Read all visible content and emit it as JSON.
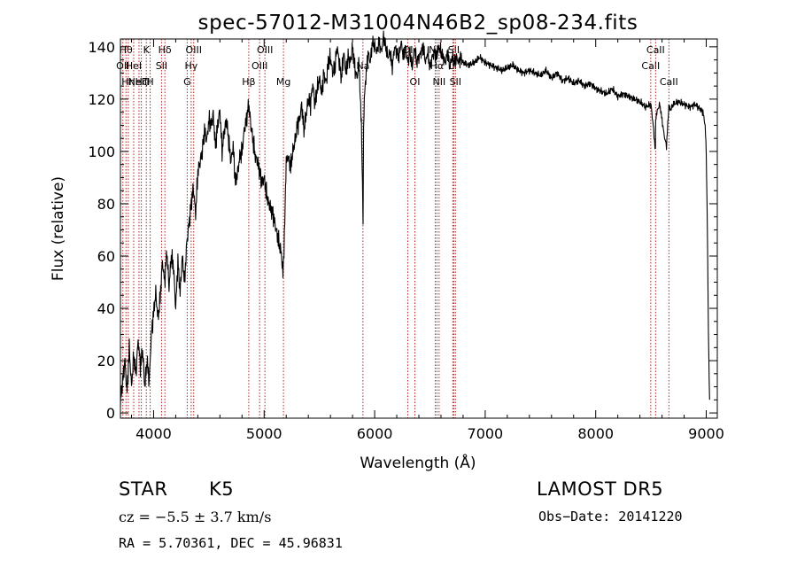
{
  "chart_data": {
    "type": "line",
    "title": "spec-57012-M31004N46B2_sp08-234.fits",
    "xlabel": "Wavelength (Å)",
    "ylabel": "Flux (relative)",
    "xlim": [
      3700,
      9100
    ],
    "ylim": [
      -2,
      143
    ],
    "x_ticks": [
      4000,
      5000,
      6000,
      7000,
      8000,
      9000
    ],
    "y_ticks": [
      0,
      20,
      40,
      60,
      80,
      100,
      120,
      140
    ],
    "grid": false,
    "series": [
      {
        "color": "#000000",
        "x": [
          3700,
          3720,
          3740,
          3760,
          3780,
          3800,
          3820,
          3840,
          3860,
          3880,
          3900,
          3920,
          3940,
          3960,
          3980,
          4000,
          4020,
          4040,
          4060,
          4080,
          4100,
          4120,
          4140,
          4160,
          4180,
          4200,
          4220,
          4240,
          4260,
          4280,
          4300,
          4320,
          4340,
          4360,
          4380,
          4400,
          4420,
          4440,
          4460,
          4480,
          4500,
          4520,
          4540,
          4560,
          4580,
          4600,
          4620,
          4640,
          4660,
          4680,
          4700,
          4720,
          4740,
          4760,
          4780,
          4800,
          4820,
          4840,
          4860,
          4880,
          4900,
          4920,
          4940,
          4960,
          4980,
          5000,
          5020,
          5040,
          5060,
          5080,
          5100,
          5120,
          5140,
          5160,
          5170,
          5180,
          5190,
          5200,
          5220,
          5240,
          5260,
          5280,
          5300,
          5320,
          5340,
          5360,
          5380,
          5400,
          5420,
          5440,
          5460,
          5480,
          5500,
          5520,
          5540,
          5560,
          5580,
          5600,
          5620,
          5640,
          5660,
          5680,
          5700,
          5720,
          5740,
          5760,
          5780,
          5800,
          5820,
          5840,
          5860,
          5870,
          5880,
          5890,
          5895,
          5900,
          5910,
          5920,
          5940,
          5960,
          5980,
          6000,
          6020,
          6040,
          6060,
          6080,
          6100,
          6120,
          6140,
          6160,
          6180,
          6200,
          6220,
          6240,
          6260,
          6280,
          6300,
          6320,
          6340,
          6360,
          6380,
          6400,
          6420,
          6440,
          6460,
          6480,
          6500,
          6520,
          6540,
          6560,
          6580,
          6600,
          6620,
          6640,
          6660,
          6680,
          6700,
          6720,
          6740,
          6760,
          6780,
          6800,
          6850,
          6900,
          6950,
          7000,
          7050,
          7100,
          7150,
          7200,
          7250,
          7300,
          7350,
          7400,
          7450,
          7500,
          7550,
          7600,
          7650,
          7700,
          7750,
          7800,
          7850,
          7900,
          7950,
          8000,
          8050,
          8100,
          8150,
          8200,
          8250,
          8300,
          8350,
          8400,
          8450,
          8500,
          8520,
          8540,
          8542,
          8560,
          8580,
          8600,
          8620,
          8640,
          8660,
          8662,
          8680,
          8700,
          8750,
          8800,
          8850,
          8900,
          8950,
          8970,
          8990,
          9000,
          9010,
          9020,
          9030
        ],
        "y": [
          5,
          12,
          20,
          8,
          25,
          10,
          22,
          15,
          28,
          18,
          24,
          10,
          20,
          12,
          30,
          38,
          46,
          36,
          44,
          58,
          50,
          62,
          48,
          60,
          56,
          40,
          58,
          46,
          60,
          50,
          65,
          72,
          80,
          86,
          76,
          92,
          96,
          100,
          108,
          104,
          112,
          110,
          114,
          102,
          110,
          116,
          100,
          108,
          112,
          104,
          96,
          102,
          88,
          92,
          98,
          100,
          108,
          112,
          118,
          110,
          104,
          98,
          96,
          92,
          88,
          90,
          84,
          80,
          78,
          76,
          72,
          68,
          64,
          60,
          55,
          62,
          80,
          96,
          98,
          94,
          100,
          104,
          110,
          112,
          118,
          108,
          114,
          120,
          118,
          126,
          118,
          124,
          128,
          122,
          130,
          126,
          134,
          136,
          130,
          132,
          140,
          134,
          128,
          138,
          130,
          136,
          134,
          140,
          132,
          128,
          134,
          122,
          112,
          88,
          72,
          110,
          124,
          128,
          138,
          134,
          142,
          140,
          138,
          142,
          138,
          144,
          140,
          136,
          138,
          132,
          140,
          138,
          136,
          142,
          136,
          140,
          134,
          138,
          132,
          140,
          134,
          136,
          138,
          140,
          134,
          138,
          132,
          136,
          138,
          136,
          140,
          138,
          136,
          134,
          138,
          132,
          136,
          134,
          136,
          134,
          136,
          134,
          133,
          134,
          136,
          134,
          133,
          132,
          131,
          132,
          133,
          131,
          130,
          131,
          130,
          129,
          131,
          128,
          130,
          127,
          128,
          126,
          127,
          125,
          126,
          124,
          123,
          122,
          124,
          121,
          122,
          121,
          120,
          119,
          117,
          118,
          110,
          100,
          112,
          116,
          118,
          112,
          106,
          102,
          116,
          117,
          116,
          118,
          119,
          118,
          117,
          118,
          116,
          115,
          110,
          100,
          70,
          30,
          5
        ]
      }
    ],
    "line_markers": [
      {
        "wave": 3722,
        "label": "OII",
        "row": 2
      },
      {
        "wave": 3750,
        "label": "Hθ",
        "row": 1
      },
      {
        "wave": 3771,
        "label": "Hη",
        "row": 3
      },
      {
        "wave": 3820,
        "label": "HeI",
        "row": 2
      },
      {
        "wave": 3868,
        "label": "NeIII",
        "row": 0
      },
      {
        "wave": 3889,
        "label": "Hζ",
        "row": 0
      },
      {
        "wave": 3934,
        "label": "K",
        "row": 1
      },
      {
        "wave": 3969,
        "label": "H",
        "row": 3
      },
      {
        "wave": 4072,
        "label": "SII",
        "row": 2
      },
      {
        "wave": 4102,
        "label": "Hδ",
        "row": 1
      },
      {
        "wave": 4304,
        "label": "G",
        "row": 3
      },
      {
        "wave": 4340,
        "label": "Hγ",
        "row": 2
      },
      {
        "wave": 4363,
        "label": "OIII",
        "row": 1
      },
      {
        "wave": 4861,
        "label": "Hβ",
        "row": 3
      },
      {
        "wave": 4959,
        "label": "OIII",
        "row": 2
      },
      {
        "wave": 5007,
        "label": "OIII",
        "row": 1
      },
      {
        "wave": 5175,
        "label": "Mg",
        "row": 3
      },
      {
        "wave": 5894,
        "label": "Na",
        "row": 2
      },
      {
        "wave": 6300,
        "label": "OI",
        "row": 1
      },
      {
        "wave": 6364,
        "label": "OI",
        "row": 3
      },
      {
        "wave": 6548,
        "label": "NII",
        "row": 1
      },
      {
        "wave": 6563,
        "label": "Hα",
        "row": 2
      },
      {
        "wave": 6583,
        "label": "NII",
        "row": 3
      },
      {
        "wave": 6707,
        "label": "Li",
        "row": 2
      },
      {
        "wave": 6716,
        "label": "SII",
        "row": 1
      },
      {
        "wave": 6731,
        "label": "SII",
        "row": 3
      },
      {
        "wave": 8498,
        "label": "CaII",
        "row": 2
      },
      {
        "wave": 8542,
        "label": "CaII",
        "row": 1
      },
      {
        "wave": 8662,
        "label": "CaII",
        "row": 3
      }
    ]
  },
  "info": {
    "object_class": "STAR",
    "subclass": "K5",
    "survey": "LAMOST  DR5",
    "cz_text": "cz = −5.5 ± 3.7 km/s",
    "obs_date": "Obs−Date: 20141220",
    "radec": "RA =   5.70361, DEC =  45.96831"
  }
}
